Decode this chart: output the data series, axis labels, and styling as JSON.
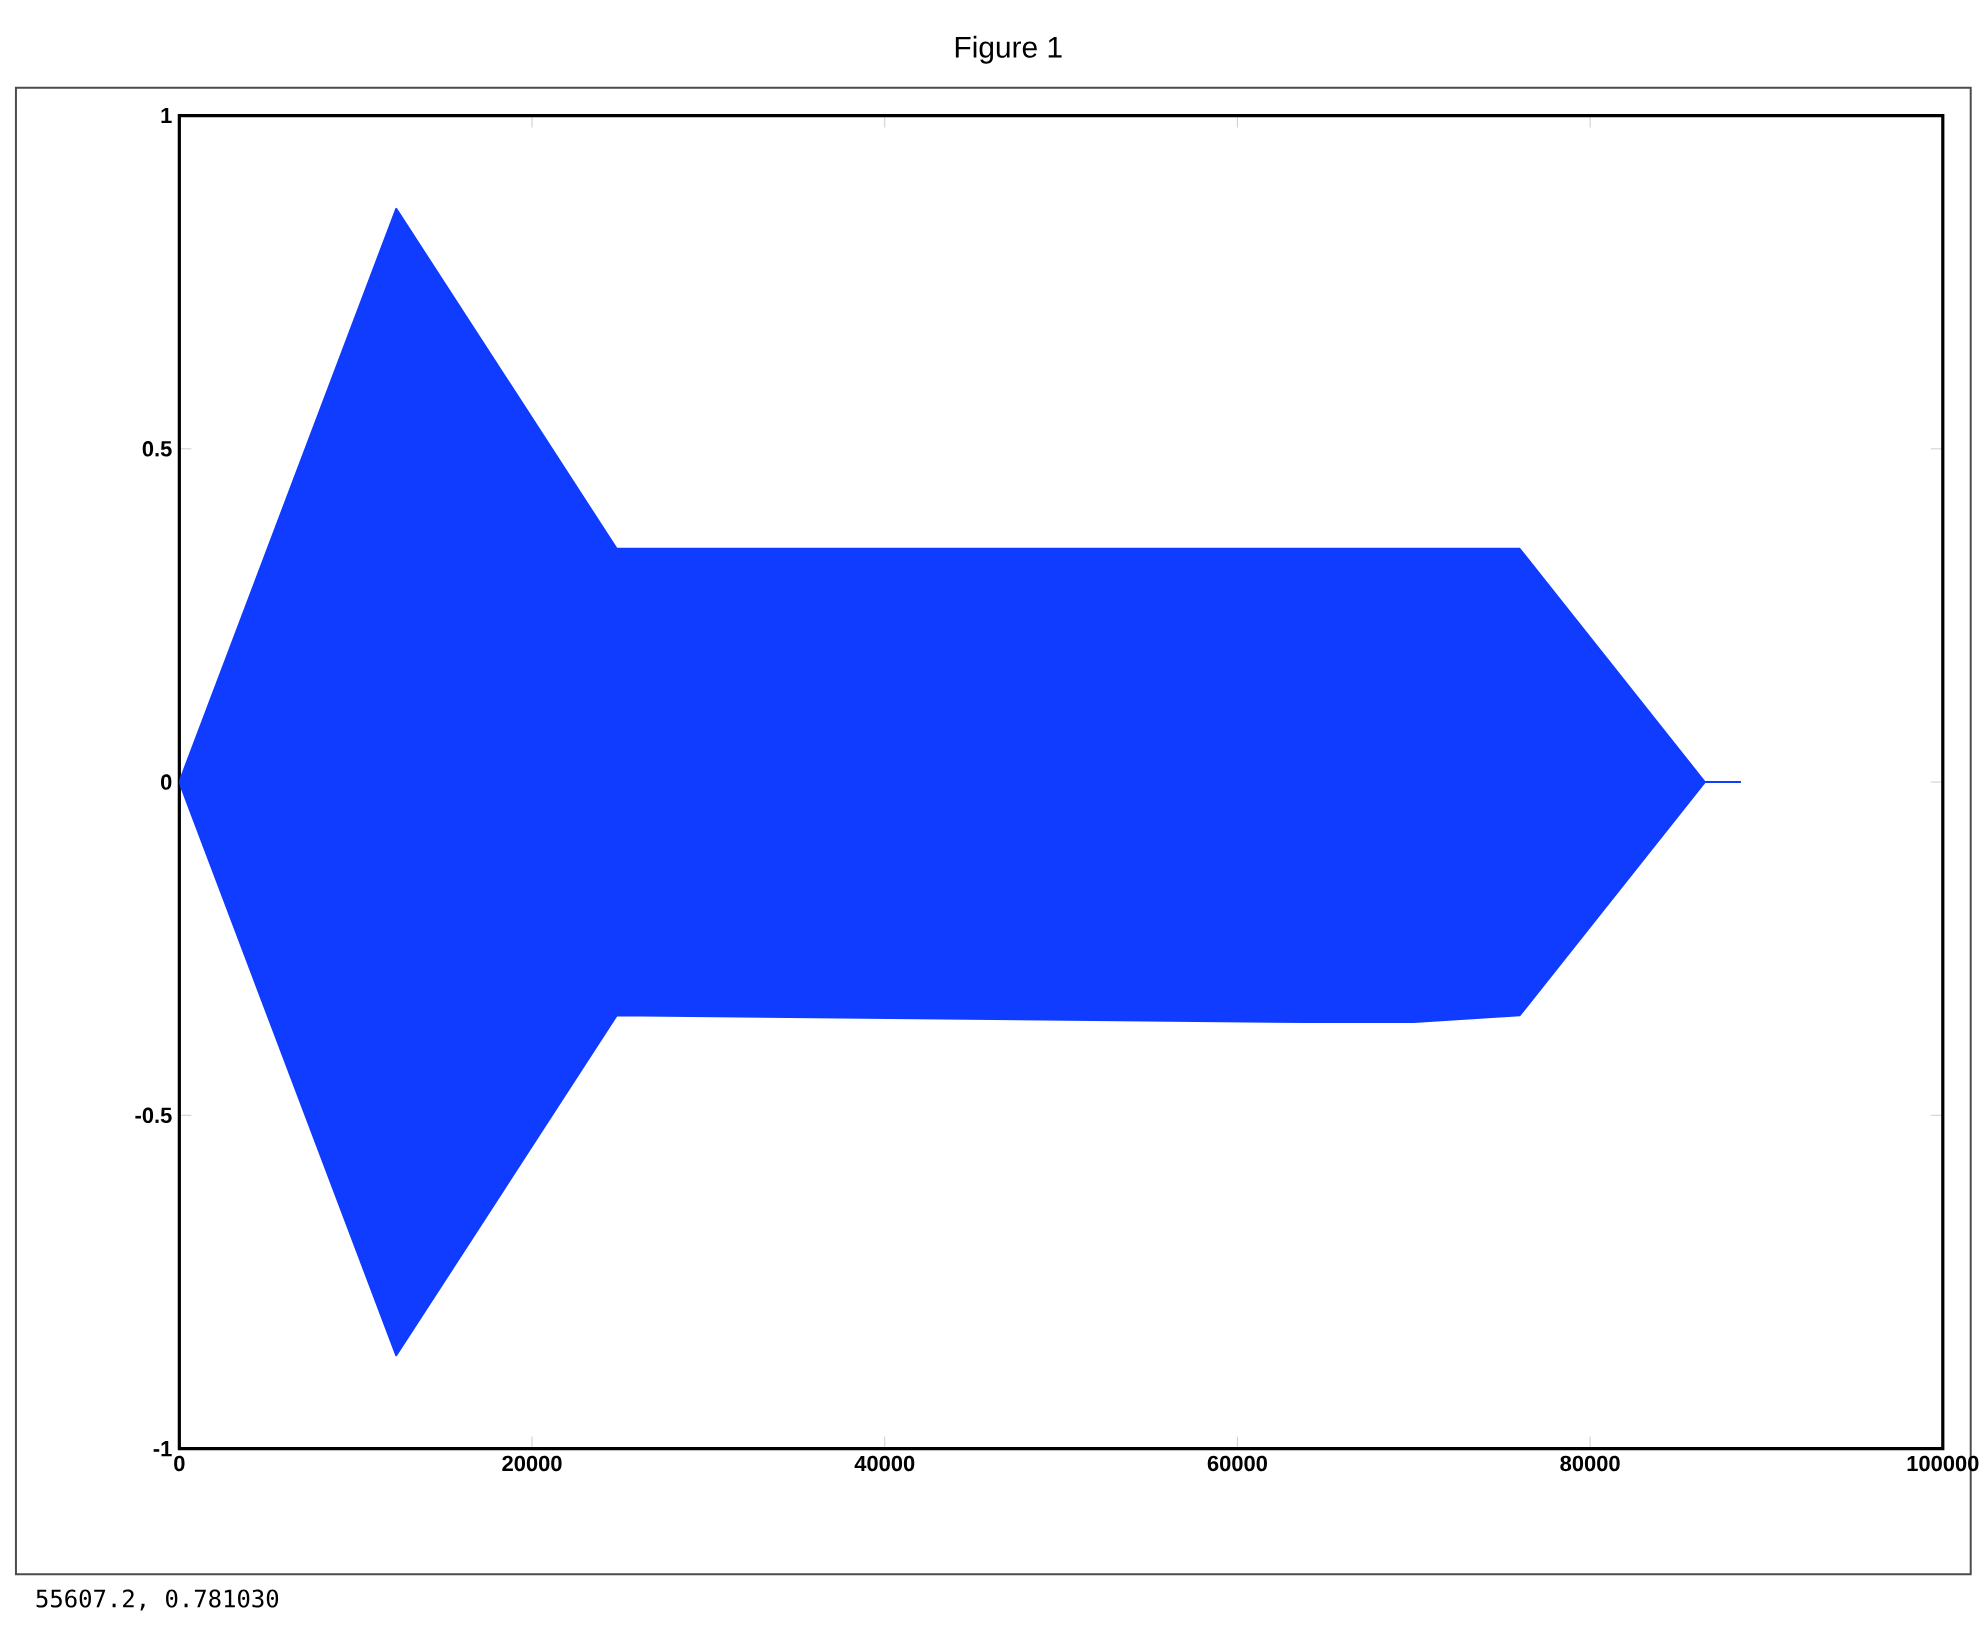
{
  "chart_data": {
    "type": "area",
    "title": "Figure 1",
    "x": [
      0,
      12300,
      24800,
      64000,
      70000,
      76000,
      86500,
      88500
    ],
    "series": [
      {
        "color": "#0f3cff",
        "values": [
          0,
          0.86,
          0.35,
          0.35,
          0.35,
          0.35,
          0,
          0
        ]
      },
      {
        "color": "#0f3cff",
        "values": [
          0,
          -0.86,
          -0.35,
          -0.36,
          -0.36,
          -0.35,
          0,
          0
        ]
      }
    ],
    "xlim": [
      0,
      100000
    ],
    "xticks": [
      0,
      20000,
      40000,
      60000,
      80000,
      100000
    ],
    "ylim": [
      -1,
      1
    ],
    "yticks": [
      -1,
      -0.5,
      0,
      0.5,
      1
    ],
    "annotations": [
      "55607.2,  0.781030"
    ],
    "grid": false,
    "marker": "none",
    "line_style": "solid"
  }
}
